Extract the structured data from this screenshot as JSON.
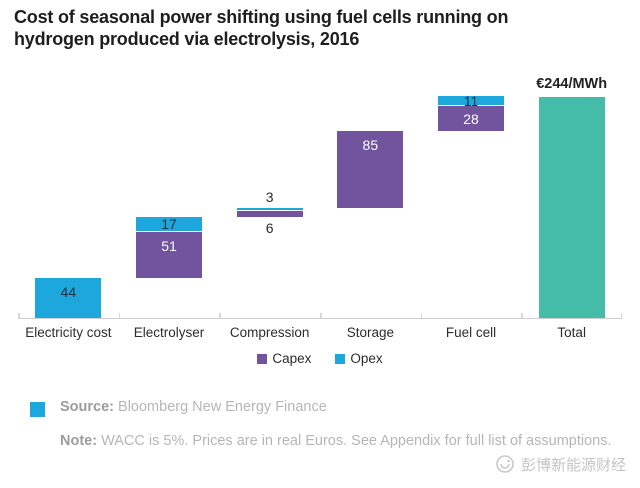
{
  "title": {
    "line1": "Cost of seasonal power shifting using fuel cells running on",
    "line2": "hydrogen produced via electrolysis, 2016"
  },
  "chart_data": {
    "type": "bar",
    "subtype": "stacked-waterfall",
    "unit": "€/MWh",
    "title": "Cost of seasonal power shifting using fuel cells running on hydrogen produced via electrolysis, 2016",
    "categories": [
      "Electricity cost",
      "Electrolyser",
      "Compression",
      "Storage",
      "Fuel cell",
      "Total"
    ],
    "series_colors": {
      "Capex": "#71549D",
      "Opex": "#1EA7DC",
      "Total": "#45BCA8"
    },
    "bars": [
      {
        "category": "Electricity cost",
        "base": 0,
        "segments": [
          {
            "series": "Opex",
            "value": 44
          }
        ]
      },
      {
        "category": "Electrolyser",
        "base": 44,
        "segments": [
          {
            "series": "Capex",
            "value": 51
          },
          {
            "series": "Opex",
            "value": 17
          }
        ]
      },
      {
        "category": "Compression",
        "base": 112,
        "segments": [
          {
            "series": "Capex",
            "value": 6
          },
          {
            "series": "Opex",
            "value": 3
          }
        ],
        "labels_outside": true
      },
      {
        "category": "Storage",
        "base": 121,
        "segments": [
          {
            "series": "Capex",
            "value": 85
          }
        ]
      },
      {
        "category": "Fuel cell",
        "base": 206,
        "segments": [
          {
            "series": "Capex",
            "value": 28
          },
          {
            "series": "Opex",
            "value": 11
          }
        ]
      },
      {
        "category": "Total",
        "base": 0,
        "segments": [
          {
            "series": "Total",
            "value": 244
          }
        ],
        "total_label": "€244/MWh"
      }
    ],
    "legend": [
      {
        "label": "Capex",
        "color": "#71549D"
      },
      {
        "label": "Opex",
        "color": "#1EA7DC"
      }
    ],
    "legend_position": "bottom-center",
    "grid": false,
    "ylim": [
      0,
      260
    ],
    "label_color_on_opex": "#1e3246",
    "label_color_on_capex": "#ffffff"
  },
  "footer": {
    "source_label": "Source:",
    "source_text": "Bloomberg New Energy Finance",
    "note_label": "Note:",
    "note_text": "WACC is 5%. Prices are in real Euros. See Appendix for full list of assumptions."
  },
  "watermark": {
    "text": "彭博新能源财经"
  },
  "colors": {
    "accent_square": "#1EA7DC",
    "axis": "#cfcfcf"
  }
}
